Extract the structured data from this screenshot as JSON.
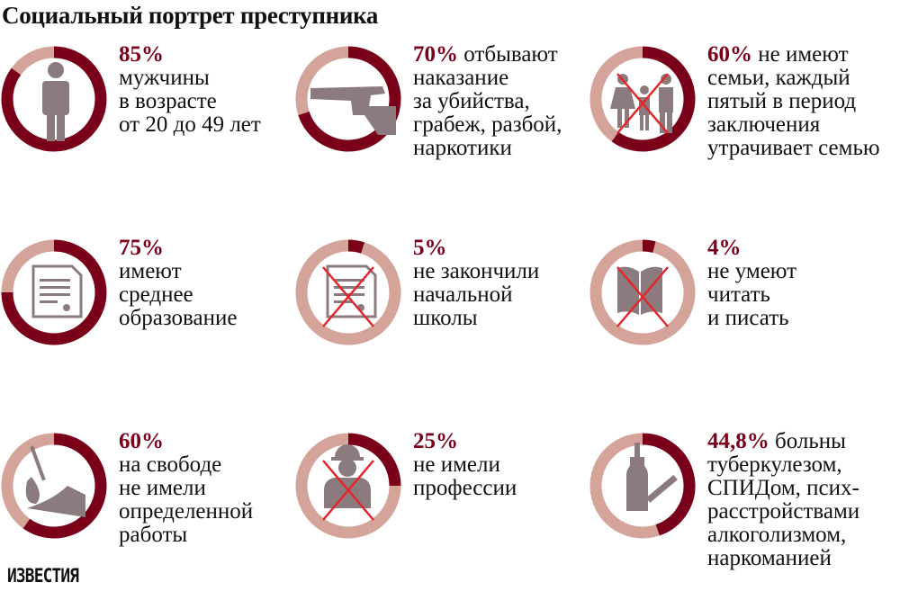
{
  "title": "Социальный портрет преступника",
  "logo": "ИЗВЕСТИЯ",
  "colors": {
    "accent": "#7a0019",
    "remainder": "#d4a39a",
    "icon": "#8c7b7e",
    "cross": "#e3262b"
  },
  "chart_data": {
    "type": "pie",
    "variant": "donut",
    "items": [
      {
        "value": 85,
        "label": "85%",
        "lines": [
          "мужчины",
          "в возрасте",
          "от 20 до 49 лет"
        ],
        "inline": "",
        "icon": "man-icon",
        "crossed": false
      },
      {
        "value": 70,
        "label": "70%",
        "inline": " отбывают",
        "lines": [
          "наказание",
          "за убийства,",
          "грабеж, разбой,",
          "наркотики"
        ],
        "icon": "pistol-icon",
        "crossed": false
      },
      {
        "value": 60,
        "label": "60%",
        "inline": " не имеют",
        "lines": [
          "семьи, каждый",
          "пятый в период",
          "заключения",
          "утрачивает семью"
        ],
        "icon": "family-icon",
        "crossed": true
      },
      {
        "value": 75,
        "label": "75%",
        "inline": "",
        "lines": [
          "имеют",
          "среднее",
          "образование"
        ],
        "icon": "diploma-icon",
        "crossed": false
      },
      {
        "value": 5,
        "label": "5%",
        "inline": "",
        "lines": [
          "не закончили",
          "начальной",
          "школы"
        ],
        "icon": "certificate-icon",
        "crossed": true
      },
      {
        "value": 4,
        "label": "4%",
        "inline": "",
        "lines": [
          "не умеют",
          "читать",
          "и писать"
        ],
        "icon": "book-icon",
        "crossed": true
      },
      {
        "value": 60,
        "label": "60%",
        "inline": "",
        "lines": [
          "на свободе",
          "не имели",
          "определенной",
          "работы"
        ],
        "icon": "shovel-icon",
        "crossed": false
      },
      {
        "value": 25,
        "label": "25%",
        "inline": "",
        "lines": [
          "не имели",
          "профессии"
        ],
        "icon": "worker-icon",
        "crossed": true
      },
      {
        "value": 44.8,
        "label": "44,8%",
        "inline": " больны",
        "lines": [
          "туберкулезом,",
          "СПИДом, псих-",
          "расстройствами",
          "алкоголизмом,",
          "наркоманией"
        ],
        "icon": "bottle-syringe-icon",
        "crossed": false
      }
    ]
  }
}
